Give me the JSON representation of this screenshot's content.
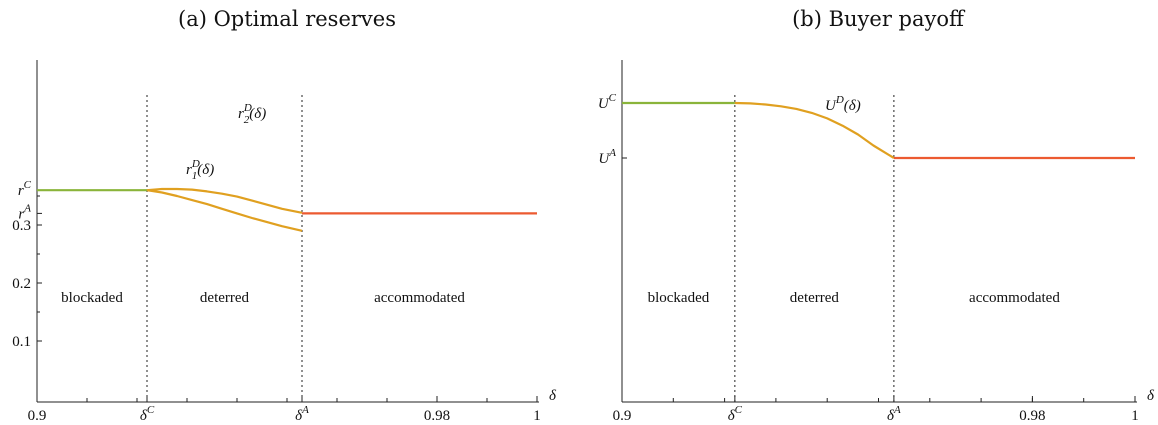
{
  "colors": {
    "blockaded": "#8ab43a",
    "deterred": "#e0a020",
    "accommodated": "#ec5a30"
  },
  "chart_data": [
    {
      "type": "line",
      "title": "(a) Optimal reserves",
      "xlabel": "δ",
      "xlim": [
        0.9,
        1.0
      ],
      "ylim": [
        0.0,
        0.4
      ],
      "x_ticks": [
        "0.9",
        "δ",
        "δ",
        "0.98",
        "1"
      ],
      "x_tick_values": [
        0.9,
        0.922,
        0.953,
        0.98,
        1.0
      ],
      "x_tick_sup": [
        "",
        "C",
        "A",
        "",
        ""
      ],
      "y_ticks": [
        "0.1",
        "0.2",
        "0.3"
      ],
      "y_tick_values": [
        0.1,
        0.2,
        0.3
      ],
      "y_special": [
        {
          "label": "r",
          "sup": "C",
          "value": 0.36
        },
        {
          "label": "r",
          "sup": "A",
          "value": 0.32
        }
      ],
      "delta_C": 0.922,
      "delta_A": 0.953,
      "regions": [
        "blockaded",
        "deterred",
        "accommodated"
      ],
      "region_label_y": 0.2,
      "series": [
        {
          "name": "blockaded",
          "color_key": "blockaded",
          "x": [
            0.9,
            0.922
          ],
          "y": [
            0.36,
            0.36
          ]
        },
        {
          "name": "r",
          "sub": "2",
          "sup": "D",
          "suffix": "(δ)",
          "color_key": "deterred",
          "x": [
            0.922,
            0.925,
            0.928,
            0.931,
            0.934,
            0.937,
            0.94,
            0.943,
            0.946,
            0.949,
            0.953
          ],
          "y": [
            0.36,
            0.362,
            0.362,
            0.361,
            0.358,
            0.354,
            0.349,
            0.342,
            0.335,
            0.328,
            0.321
          ]
        },
        {
          "name": "r",
          "sub": "1",
          "sup": "D",
          "suffix": "(δ)",
          "color_key": "deterred",
          "x": [
            0.922,
            0.925,
            0.928,
            0.931,
            0.934,
            0.937,
            0.94,
            0.943,
            0.946,
            0.949,
            0.953
          ],
          "y": [
            0.36,
            0.356,
            0.35,
            0.343,
            0.336,
            0.328,
            0.32,
            0.312,
            0.305,
            0.298,
            0.29
          ]
        },
        {
          "name": "accommodated",
          "color_key": "accommodated",
          "x": [
            0.953,
            1.0
          ],
          "y": [
            0.32,
            0.32
          ]
        }
      ]
    },
    {
      "type": "line",
      "title": "(b) Buyer payoff",
      "xlabel": "δ",
      "xlim": [
        0.9,
        1.0
      ],
      "ylim": [
        0.0,
        1.0
      ],
      "x_ticks": [
        "0.9",
        "δ",
        "δ",
        "0.98",
        "1"
      ],
      "x_tick_values": [
        0.9,
        0.922,
        0.953,
        0.98,
        1.0
      ],
      "x_tick_sup": [
        "",
        "C",
        "A",
        "",
        ""
      ],
      "y_ticks": [],
      "y_tick_values": [],
      "y_special": [
        {
          "label": "U",
          "sup": "C",
          "value": 0.9
        },
        {
          "label": "U",
          "sup": "A",
          "value": 0.75
        }
      ],
      "delta_C": 0.922,
      "delta_A": 0.953,
      "regions": [
        "blockaded",
        "deterred",
        "accommodated"
      ],
      "region_label_y": 0.3,
      "series": [
        {
          "name": "blockaded",
          "color_key": "blockaded",
          "x": [
            0.9,
            0.922
          ],
          "y": [
            0.9,
            0.9
          ]
        },
        {
          "name": "U",
          "sub": "",
          "sup": "D",
          "suffix": "(δ)",
          "color_key": "deterred",
          "x": [
            0.922,
            0.925,
            0.928,
            0.931,
            0.934,
            0.937,
            0.94,
            0.943,
            0.946,
            0.949,
            0.953
          ],
          "y": [
            0.9,
            0.899,
            0.896,
            0.891,
            0.884,
            0.873,
            0.858,
            0.838,
            0.814,
            0.784,
            0.75
          ]
        },
        {
          "name": "accommodated",
          "color_key": "accommodated",
          "x": [
            0.953,
            1.0
          ],
          "y": [
            0.75,
            0.75
          ]
        }
      ]
    }
  ]
}
